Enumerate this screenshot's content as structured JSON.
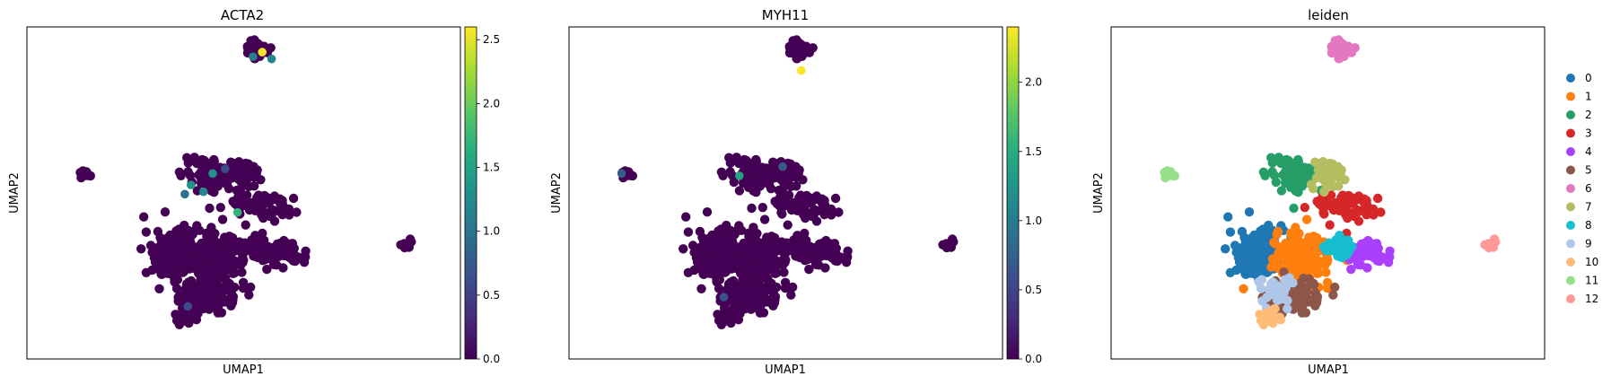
{
  "chart_data": [
    {
      "type": "scatter",
      "title": "ACTA2",
      "xlabel": "UMAP1",
      "ylabel": "UMAP2",
      "colorbar": {
        "colormap": "viridis",
        "range": [
          0,
          2.6
        ],
        "ticks": [
          "0.0",
          "0.5",
          "1.0",
          "1.5",
          "2.0",
          "2.5"
        ],
        "tick_values": [
          0,
          0.5,
          1.0,
          1.5,
          2.0,
          2.5
        ]
      },
      "grid": false,
      "highlight_points": [
        {
          "x": 6.6,
          "y": 9.4,
          "value": 2.55
        },
        {
          "x": 6.9,
          "y": 9.1,
          "value": 1.2
        },
        {
          "x": 6.3,
          "y": 9.2,
          "value": 1.1
        },
        {
          "x": 5.0,
          "y": 4.1,
          "value": 1.3
        },
        {
          "x": 4.3,
          "y": 3.6,
          "value": 1.35
        },
        {
          "x": 4.7,
          "y": 3.3,
          "value": 1.2
        },
        {
          "x": 4.1,
          "y": 3.2,
          "value": 1.0
        },
        {
          "x": 5.8,
          "y": 2.4,
          "value": 1.7
        },
        {
          "x": 5.4,
          "y": 4.3,
          "value": 0.6
        },
        {
          "x": 4.2,
          "y": -1.7,
          "value": 0.6
        }
      ]
    },
    {
      "type": "scatter",
      "title": "MYH11",
      "xlabel": "UMAP1",
      "ylabel": "UMAP2",
      "colorbar": {
        "colormap": "viridis",
        "range": [
          0,
          2.4
        ],
        "ticks": [
          "0.0",
          "0.5",
          "1.0",
          "1.5",
          "2.0"
        ],
        "tick_values": [
          0,
          0.5,
          1.0,
          1.5,
          2.0
        ]
      },
      "grid": false,
      "highlight_points": [
        {
          "x": 6.5,
          "y": 8.6,
          "value": 2.4
        },
        {
          "x": 4.5,
          "y": 4.0,
          "value": 1.4
        },
        {
          "x": 5.9,
          "y": 4.4,
          "value": 0.7
        },
        {
          "x": 0.7,
          "y": 4.1,
          "value": 0.7
        },
        {
          "x": 4.0,
          "y": -1.3,
          "value": 0.6
        }
      ]
    },
    {
      "type": "scatter",
      "title": "leiden",
      "xlabel": "UMAP1",
      "ylabel": "UMAP2",
      "grid": false,
      "legend_position": "right",
      "legend": [
        "0",
        "1",
        "2",
        "3",
        "4",
        "5",
        "6",
        "7",
        "8",
        "9",
        "10",
        "11",
        "12"
      ],
      "legend_colors": [
        "#1f77b4",
        "#ff7f0e",
        "#279e68",
        "#d62728",
        "#aa40fc",
        "#8c564b",
        "#e377c2",
        "#b5bd61",
        "#17becf",
        "#aec7e8",
        "#ffbb78",
        "#98df8a",
        "#ff9896"
      ],
      "clusters": [
        {
          "label": "0",
          "x": 3.7,
          "y": 0.6
        },
        {
          "label": "1",
          "x": 5.2,
          "y": 0.4
        },
        {
          "label": "2",
          "x": 5.0,
          "y": 4.0
        },
        {
          "label": "3",
          "x": 6.6,
          "y": 2.6
        },
        {
          "label": "4",
          "x": 7.2,
          "y": 0.7
        },
        {
          "label": "5",
          "x": 5.0,
          "y": -1.2
        },
        {
          "label": "6",
          "x": 6.4,
          "y": 9.5
        },
        {
          "label": "7",
          "x": 6.0,
          "y": 4.0
        },
        {
          "label": "8",
          "x": 6.3,
          "y": 0.9
        },
        {
          "label": "9",
          "x": 4.3,
          "y": -1.0
        },
        {
          "label": "10",
          "x": 4.2,
          "y": -2.2
        },
        {
          "label": "11",
          "x": 0.9,
          "y": 4.1
        },
        {
          "label": "12",
          "x": 11.3,
          "y": 1.0
        }
      ]
    }
  ]
}
